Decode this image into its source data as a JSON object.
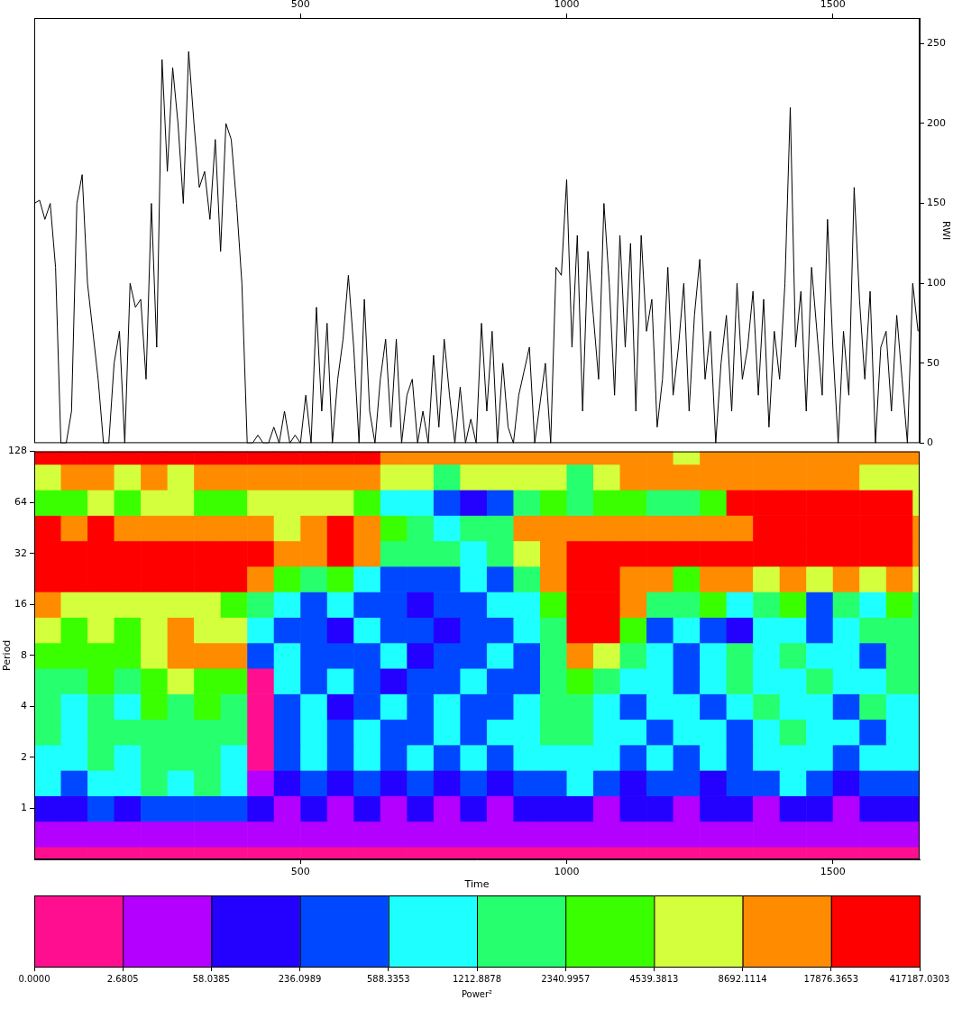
{
  "chart_data": [
    {
      "type": "line",
      "y_label": "RWI",
      "color": "#000000",
      "grid": false,
      "xlim": [
        0,
        1663
      ],
      "xticks": [
        500,
        1000,
        1500
      ],
      "ylim": [
        0,
        266
      ],
      "yticks": [
        0,
        50,
        100,
        150,
        200,
        250
      ],
      "x": [
        0,
        10,
        20,
        30,
        40,
        50,
        60,
        70,
        80,
        90,
        100,
        110,
        120,
        130,
        140,
        150,
        160,
        170,
        180,
        190,
        200,
        210,
        220,
        230,
        240,
        250,
        260,
        270,
        280,
        290,
        300,
        310,
        320,
        330,
        340,
        350,
        360,
        370,
        380,
        390,
        400,
        410,
        420,
        430,
        440,
        450,
        460,
        470,
        480,
        490,
        500,
        510,
        520,
        530,
        540,
        550,
        560,
        570,
        580,
        590,
        600,
        610,
        620,
        630,
        640,
        650,
        660,
        670,
        680,
        690,
        700,
        710,
        720,
        730,
        740,
        750,
        760,
        770,
        780,
        790,
        800,
        810,
        820,
        830,
        840,
        850,
        860,
        870,
        880,
        890,
        900,
        910,
        920,
        930,
        940,
        950,
        960,
        970,
        980,
        990,
        1000,
        1010,
        1020,
        1030,
        1040,
        1050,
        1060,
        1070,
        1080,
        1090,
        1100,
        1110,
        1120,
        1130,
        1140,
        1150,
        1160,
        1170,
        1180,
        1190,
        1200,
        1210,
        1220,
        1230,
        1240,
        1250,
        1260,
        1270,
        1280,
        1290,
        1300,
        1310,
        1320,
        1330,
        1340,
        1350,
        1360,
        1370,
        1380,
        1390,
        1400,
        1410,
        1420,
        1430,
        1440,
        1450,
        1460,
        1470,
        1480,
        1490,
        1500,
        1510,
        1520,
        1530,
        1540,
        1550,
        1560,
        1570,
        1580,
        1590,
        1600,
        1610,
        1620,
        1630,
        1640,
        1650,
        1660
      ],
      "values": [
        150,
        152,
        140,
        150,
        110,
        0,
        0,
        20,
        150,
        168,
        100,
        70,
        40,
        0,
        0,
        50,
        70,
        0,
        100,
        85,
        90,
        40,
        150,
        60,
        240,
        170,
        235,
        200,
        150,
        245,
        200,
        160,
        170,
        140,
        190,
        120,
        200,
        190,
        150,
        100,
        0,
        0,
        5,
        0,
        0,
        10,
        0,
        20,
        0,
        5,
        0,
        30,
        0,
        85,
        20,
        75,
        0,
        40,
        65,
        105,
        60,
        0,
        90,
        20,
        0,
        40,
        65,
        10,
        65,
        0,
        30,
        40,
        0,
        20,
        0,
        55,
        10,
        65,
        30,
        0,
        35,
        0,
        15,
        0,
        75,
        20,
        70,
        0,
        50,
        10,
        0,
        30,
        45,
        60,
        0,
        25,
        50,
        0,
        110,
        105,
        165,
        60,
        130,
        20,
        120,
        80,
        40,
        150,
        100,
        30,
        130,
        60,
        125,
        20,
        130,
        70,
        90,
        10,
        40,
        110,
        30,
        60,
        100,
        20,
        80,
        115,
        40,
        70,
        0,
        50,
        80,
        20,
        100,
        40,
        60,
        95,
        30,
        90,
        10,
        70,
        40,
        100,
        210,
        60,
        95,
        20,
        110,
        70,
        30,
        140,
        60,
        0,
        70,
        30,
        160,
        90,
        40,
        95,
        0,
        60,
        70,
        20,
        80,
        40,
        0,
        100,
        70
      ]
    },
    {
      "type": "heatmap",
      "x_label": "Time",
      "y_label": "Period",
      "log": "y",
      "grid": false,
      "xlim": [
        0,
        1663
      ],
      "xticks": [
        500,
        1000,
        1500
      ],
      "ylim": [
        0.5,
        128
      ],
      "yticks": [
        1,
        2,
        4,
        8,
        16,
        32,
        64,
        128
      ],
      "x": [
        25,
        75,
        125,
        175,
        225,
        275,
        325,
        375,
        425,
        475,
        525,
        575,
        625,
        675,
        725,
        775,
        825,
        875,
        925,
        975,
        1025,
        1075,
        1125,
        1175,
        1225,
        1275,
        1325,
        1375,
        1425,
        1475,
        1525,
        1575,
        1625,
        1675
      ],
      "y": [
        0.5,
        0.707,
        1,
        1.414,
        2,
        2.828,
        4,
        5.657,
        8,
        11.31,
        16,
        22.63,
        32,
        45.25,
        64,
        90.51,
        128
      ],
      "cells": [
        [
          1,
          1,
          1,
          1,
          1,
          1,
          1,
          1,
          1,
          1,
          1,
          1,
          1,
          1,
          1,
          1,
          1,
          1,
          1,
          1,
          1,
          1,
          1,
          1,
          1,
          1,
          1,
          1,
          1,
          1,
          1,
          1,
          1,
          1
        ],
        [
          20,
          20,
          20,
          20,
          20,
          20,
          20,
          20,
          20,
          20,
          20,
          20,
          20,
          20,
          20,
          20,
          20,
          20,
          20,
          20,
          20,
          20,
          20,
          20,
          20,
          20,
          20,
          20,
          20,
          20,
          20,
          20,
          20,
          20
        ],
        [
          120,
          120,
          400,
          120,
          400,
          400,
          400,
          400,
          120,
          20,
          120,
          20,
          120,
          20,
          120,
          20,
          120,
          20,
          120,
          120,
          120,
          20,
          120,
          120,
          20,
          120,
          120,
          20,
          120,
          120,
          20,
          120,
          120,
          120
        ],
        [
          900,
          400,
          900,
          900,
          1700,
          900,
          1700,
          900,
          20,
          120,
          400,
          120,
          400,
          120,
          400,
          120,
          400,
          120,
          400,
          400,
          900,
          400,
          120,
          400,
          400,
          120,
          400,
          400,
          900,
          400,
          120,
          400,
          400,
          400
        ],
        [
          900,
          900,
          1700,
          900,
          1700,
          1700,
          1700,
          900,
          1,
          400,
          900,
          400,
          900,
          400,
          900,
          400,
          900,
          400,
          900,
          900,
          900,
          900,
          400,
          900,
          400,
          900,
          400,
          900,
          900,
          900,
          400,
          900,
          900,
          900
        ],
        [
          1700,
          900,
          1700,
          1700,
          1700,
          1700,
          1700,
          1700,
          1,
          400,
          900,
          400,
          900,
          400,
          400,
          900,
          400,
          900,
          900,
          1700,
          1700,
          900,
          900,
          400,
          900,
          900,
          400,
          900,
          1700,
          900,
          900,
          400,
          900,
          900
        ],
        [
          1700,
          900,
          1700,
          900,
          3300,
          1700,
          3300,
          1700,
          1,
          400,
          900,
          120,
          400,
          900,
          400,
          900,
          400,
          400,
          900,
          1700,
          1700,
          900,
          400,
          900,
          900,
          400,
          900,
          1700,
          900,
          900,
          400,
          1700,
          900,
          900
        ],
        [
          1700,
          1700,
          3300,
          1700,
          3300,
          6500,
          3300,
          3300,
          1,
          900,
          400,
          900,
          400,
          120,
          400,
          400,
          900,
          400,
          400,
          1700,
          3300,
          1700,
          900,
          900,
          400,
          900,
          1700,
          900,
          900,
          1700,
          900,
          900,
          1700,
          1700
        ],
        [
          3300,
          3300,
          3300,
          3300,
          6500,
          12000,
          12000,
          12000,
          400,
          900,
          400,
          400,
          400,
          900,
          120,
          400,
          400,
          900,
          400,
          1700,
          12000,
          6500,
          1700,
          900,
          400,
          900,
          1700,
          900,
          1700,
          900,
          900,
          400,
          1700,
          1700
        ],
        [
          6500,
          3300,
          6500,
          3300,
          6500,
          12000,
          6500,
          6500,
          900,
          400,
          400,
          120,
          900,
          400,
          400,
          120,
          400,
          400,
          900,
          1700,
          50000,
          50000,
          3300,
          400,
          900,
          400,
          120,
          900,
          900,
          400,
          900,
          1700,
          1700,
          1700
        ],
        [
          12000,
          6500,
          6500,
          6500,
          6500,
          6500,
          6500,
          3300,
          1700,
          900,
          400,
          900,
          400,
          400,
          120,
          400,
          400,
          900,
          900,
          3300,
          50000,
          50000,
          12000,
          1700,
          1700,
          3300,
          900,
          1700,
          3300,
          400,
          1700,
          900,
          3300,
          1700
        ],
        [
          50000,
          50000,
          50000,
          50000,
          50000,
          50000,
          50000,
          50000,
          12000,
          3300,
          1700,
          3300,
          900,
          400,
          400,
          400,
          900,
          400,
          1700,
          12000,
          50000,
          50000,
          12000,
          12000,
          3300,
          12000,
          12000,
          6500,
          12000,
          6500,
          12000,
          6500,
          12000,
          6500
        ],
        [
          50000,
          50000,
          50000,
          50000,
          50000,
          50000,
          50000,
          50000,
          50000,
          12000,
          12000,
          50000,
          12000,
          1700,
          1700,
          1700,
          900,
          1700,
          6500,
          12000,
          50000,
          50000,
          50000,
          50000,
          50000,
          50000,
          50000,
          50000,
          50000,
          50000,
          50000,
          50000,
          50000,
          12000
        ],
        [
          50000,
          12000,
          50000,
          12000,
          12000,
          12000,
          12000,
          12000,
          12000,
          6500,
          12000,
          50000,
          12000,
          3300,
          1700,
          900,
          1700,
          1700,
          12000,
          12000,
          12000,
          12000,
          12000,
          12000,
          12000,
          12000,
          12000,
          50000,
          50000,
          50000,
          50000,
          50000,
          50000,
          12000
        ],
        [
          3300,
          3300,
          6500,
          3300,
          6500,
          6500,
          3300,
          3300,
          6500,
          6500,
          6500,
          6500,
          3300,
          900,
          900,
          400,
          120,
          400,
          1700,
          3300,
          1700,
          3300,
          3300,
          1700,
          1700,
          3300,
          50000,
          50000,
          50000,
          50000,
          50000,
          50000,
          50000,
          6500
        ],
        [
          6500,
          12000,
          12000,
          6500,
          12000,
          6500,
          12000,
          12000,
          12000,
          12000,
          12000,
          12000,
          12000,
          6500,
          6500,
          1700,
          6500,
          6500,
          6500,
          6500,
          1700,
          6500,
          12000,
          12000,
          12000,
          12000,
          12000,
          12000,
          12000,
          12000,
          12000,
          6500,
          6500,
          6500
        ],
        [
          50000,
          50000,
          50000,
          50000,
          50000,
          50000,
          50000,
          50000,
          50000,
          50000,
          50000,
          50000,
          50000,
          12000,
          12000,
          12000,
          12000,
          12000,
          12000,
          12000,
          12000,
          12000,
          12000,
          12000,
          6500,
          12000,
          12000,
          12000,
          12000,
          12000,
          12000,
          12000,
          12000,
          12000
        ]
      ],
      "colorbar": {
        "label": "Power²",
        "ticks": [
          {
            "value": 0,
            "label": "0.0000"
          },
          2.6805,
          58.0385,
          236.0989,
          588.3353,
          1212.8878,
          2340.9957,
          4539.3813,
          8692.1114,
          17876.3653,
          417187.0303
        ],
        "colors": [
          "#ff0f8f",
          "#b300ff",
          "#2400ff",
          "#0048ff",
          "#1effff",
          "#26ff6e",
          "#3aff00",
          "#d4ff3c",
          "#ff8c00",
          "#ff0000"
        ]
      }
    }
  ]
}
